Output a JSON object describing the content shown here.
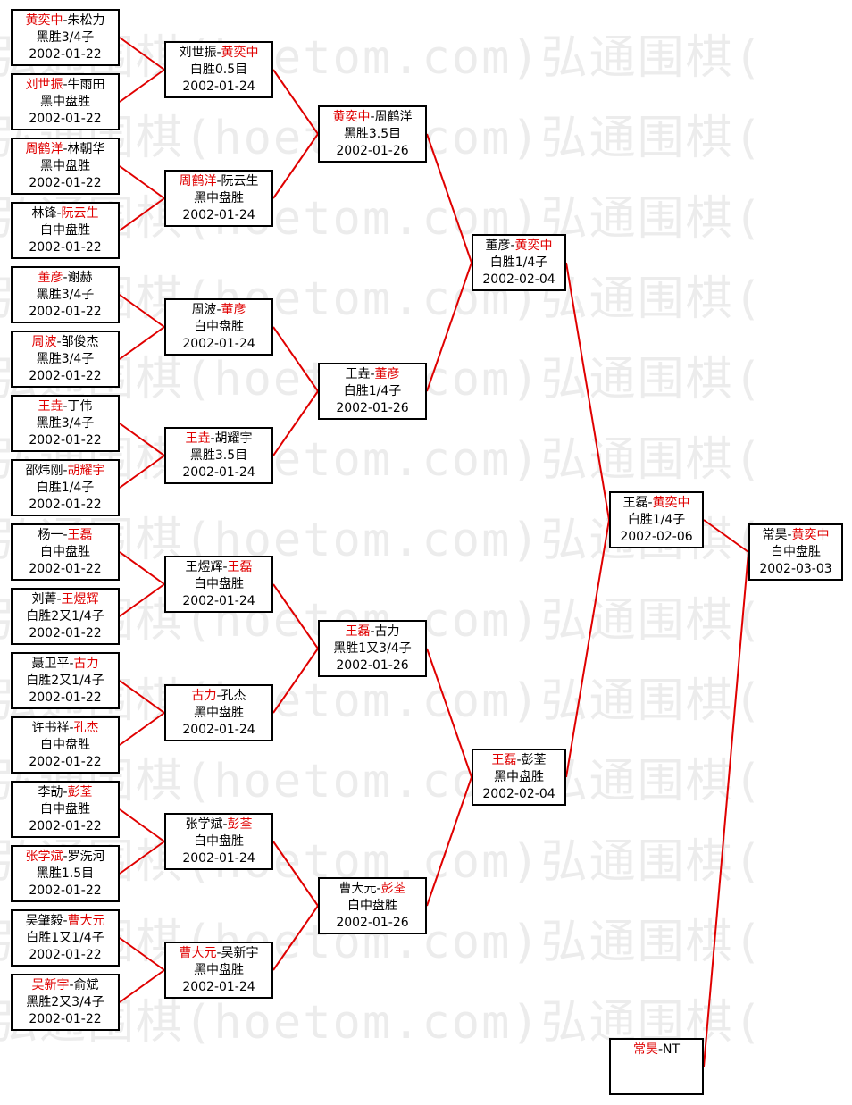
{
  "watermark": "弘通围棋(hoetom.com)弘通围棋(",
  "colors": {
    "winner": "#e00000",
    "connector": "#e00000",
    "border": "#000000"
  },
  "rounds": [
    [
      {
        "a": "黄奕中",
        "b": "朱松力",
        "winner": "a",
        "result": "黑胜3/4子",
        "date": "2002-01-22"
      },
      {
        "a": "刘世振",
        "b": "牛雨田",
        "winner": "a",
        "result": "黑中盘胜",
        "date": "2002-01-22"
      },
      {
        "a": "周鹤洋",
        "b": "林朝华",
        "winner": "a",
        "result": "黑中盘胜",
        "date": "2002-01-22"
      },
      {
        "a": "林锋",
        "b": "阮云生",
        "winner": "b",
        "result": "白中盘胜",
        "date": "2002-01-22"
      },
      {
        "a": "董彦",
        "b": "谢赫",
        "winner": "a",
        "result": "黑胜3/4子",
        "date": "2002-01-22"
      },
      {
        "a": "周波",
        "b": "邹俊杰",
        "winner": "a",
        "result": "黑胜3/4子",
        "date": "2002-01-22"
      },
      {
        "a": "王垚",
        "b": "丁伟",
        "winner": "a",
        "result": "黑胜3/4子",
        "date": "2002-01-22"
      },
      {
        "a": "邵炜刚",
        "b": "胡耀宇",
        "winner": "b",
        "result": "白胜1/4子",
        "date": "2002-01-22"
      },
      {
        "a": "杨一",
        "b": "王磊",
        "winner": "b",
        "result": "白中盘胜",
        "date": "2002-01-22"
      },
      {
        "a": "刘菁",
        "b": "王煜辉",
        "winner": "b",
        "result": "白胜2又1/4子",
        "date": "2002-01-22"
      },
      {
        "a": "聂卫平",
        "b": "古力",
        "winner": "b",
        "result": "白胜2又1/4子",
        "date": "2002-01-22"
      },
      {
        "a": "许书祥",
        "b": "孔杰",
        "winner": "b",
        "result": "白中盘胜",
        "date": "2002-01-22"
      },
      {
        "a": "李劼",
        "b": "彭荃",
        "winner": "b",
        "result": "白中盘胜",
        "date": "2002-01-22"
      },
      {
        "a": "张学斌",
        "b": "罗洗河",
        "winner": "a",
        "result": "黑胜1.5目",
        "date": "2002-01-22"
      },
      {
        "a": "吴肇毅",
        "b": "曹大元",
        "winner": "b",
        "result": "白胜1又1/4子",
        "date": "2002-01-22"
      },
      {
        "a": "吴新宇",
        "b": "俞斌",
        "winner": "a",
        "result": "黑胜2又3/4子",
        "date": "2002-01-22"
      }
    ],
    [
      {
        "a": "刘世振",
        "b": "黄奕中",
        "winner": "b",
        "result": "白胜0.5目",
        "date": "2002-01-24"
      },
      {
        "a": "周鹤洋",
        "b": "阮云生",
        "winner": "a",
        "result": "黑中盘胜",
        "date": "2002-01-24"
      },
      {
        "a": "周波",
        "b": "董彦",
        "winner": "b",
        "result": "白中盘胜",
        "date": "2002-01-24"
      },
      {
        "a": "王垚",
        "b": "胡耀宇",
        "winner": "a",
        "result": "黑胜3.5目",
        "date": "2002-01-24"
      },
      {
        "a": "王煜辉",
        "b": "王磊",
        "winner": "b",
        "result": "白中盘胜",
        "date": "2002-01-24"
      },
      {
        "a": "古力",
        "b": "孔杰",
        "winner": "a",
        "result": "黑中盘胜",
        "date": "2002-01-24"
      },
      {
        "a": "张学斌",
        "b": "彭荃",
        "winner": "b",
        "result": "白中盘胜",
        "date": "2002-01-24"
      },
      {
        "a": "曹大元",
        "b": "吴新宇",
        "winner": "a",
        "result": "黑中盘胜",
        "date": "2002-01-24"
      }
    ],
    [
      {
        "a": "黄奕中",
        "b": "周鹤洋",
        "winner": "a",
        "result": "黑胜3.5目",
        "date": "2002-01-26"
      },
      {
        "a": "王垚",
        "b": "董彦",
        "winner": "b",
        "result": "白胜1/4子",
        "date": "2002-01-26"
      },
      {
        "a": "王磊",
        "b": "古力",
        "winner": "a",
        "result": "黑胜1又3/4子",
        "date": "2002-01-26"
      },
      {
        "a": "曹大元",
        "b": "彭荃",
        "winner": "b",
        "result": "白中盘胜",
        "date": "2002-01-26"
      }
    ],
    [
      {
        "a": "董彦",
        "b": "黄奕中",
        "winner": "b",
        "result": "白胜1/4子",
        "date": "2002-02-04"
      },
      {
        "a": "王磊",
        "b": "彭荃",
        "winner": "a",
        "result": "黑中盘胜",
        "date": "2002-02-04"
      }
    ],
    [
      {
        "a": "王磊",
        "b": "黄奕中",
        "winner": "b",
        "result": "白胜1/4子",
        "date": "2002-02-06"
      }
    ]
  ],
  "seed": {
    "a": "常昊",
    "b": "NT",
    "winner": "a",
    "result": "",
    "date": ""
  },
  "final": {
    "a": "常昊",
    "b": "黄奕中",
    "winner": "b",
    "result": "白中盘胜",
    "date": "2002-03-03"
  }
}
